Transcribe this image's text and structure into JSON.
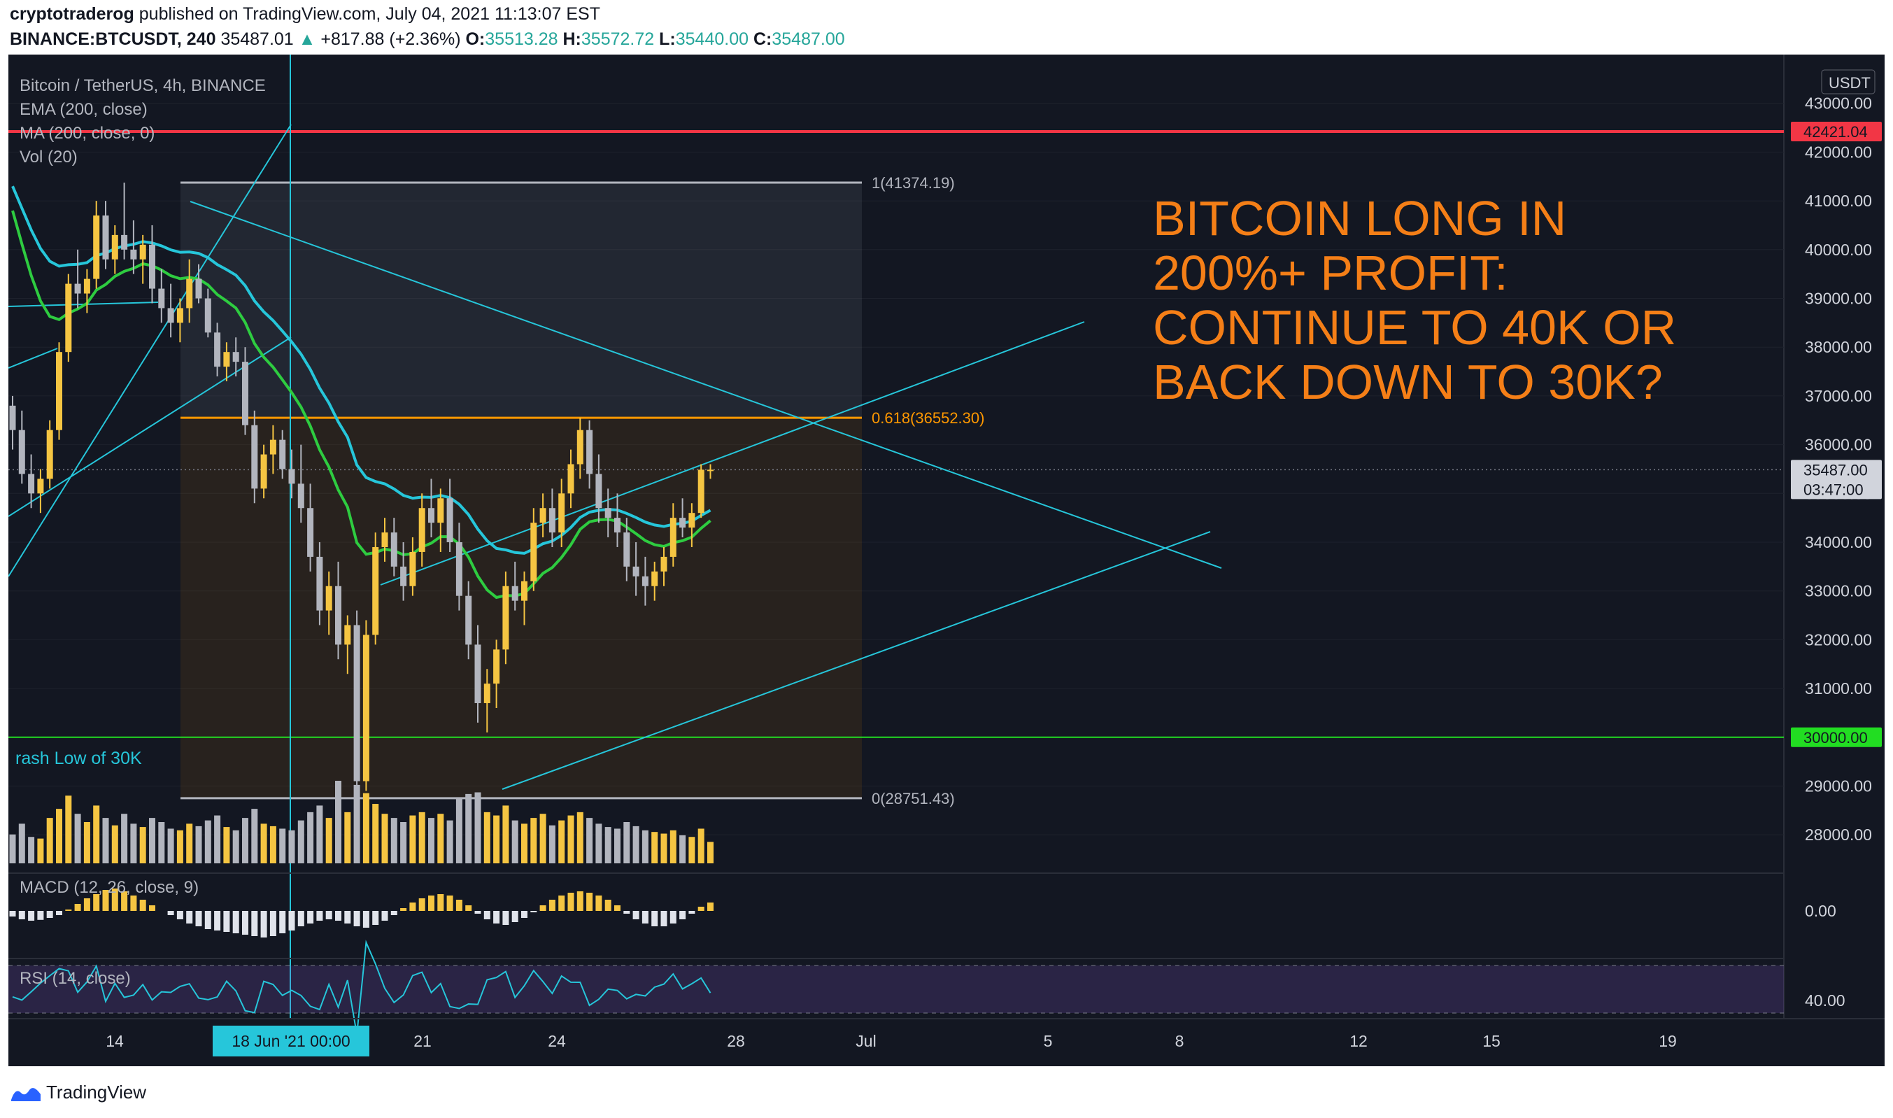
{
  "header": {
    "author": "cryptotraderog",
    "published_text": " published on TradingView.com, July 04, 2021 11:13:07 EST",
    "symbol": "BINANCE:BTCUSDT, 240",
    "last": "35487.01",
    "arrow": "▲",
    "change": "+817.88 (+2.36%)",
    "o_label": "O:",
    "o": "35513.28",
    "h_label": "H:",
    "h": "35572.72",
    "l_label": "L:",
    "l": "35440.00",
    "c_label": "C:",
    "c": "35487.00"
  },
  "legend": {
    "title": "Bitcoin / TetherUS, 4h, BINANCE",
    "ema": "EMA (200, close)",
    "ma": "MA (200, close, 0)",
    "vol": "Vol (20)",
    "macd": "MACD (12, 26, close, 9)",
    "rsi": "RSI (14, close)"
  },
  "annotation": {
    "lines": [
      "BITCOIN LONG IN",
      "200%+ PROFIT:",
      "CONTINUE TO 40K OR",
      "BACK DOWN TO 30K?"
    ],
    "color": "#f57f17"
  },
  "crash_label": "rash Low of 30K",
  "footer": {
    "brand": "TradingView"
  },
  "colors": {
    "bg": "#131722",
    "up": "#f5c542",
    "down": "#b2b5be",
    "ema": "#26c6da",
    "ma": "#2ecc40",
    "red_line": "#f23645",
    "green_line": "#22dd22",
    "trend": "#26c6da",
    "fib": "#ff9800"
  },
  "chart_data": {
    "type": "candlestick",
    "price_axis": {
      "unit": "USDT",
      "ticks": [
        "43000.00",
        "42000.00",
        "41000.00",
        "40000.00",
        "39000.00",
        "38000.00",
        "37000.00",
        "36000.00",
        "35000.00",
        "34000.00",
        "33000.00",
        "32000.00",
        "31000.00",
        "30000.00",
        "29000.00",
        "28000.00"
      ],
      "min": 27300,
      "max": 44000
    },
    "time_axis": {
      "ticks": [
        "14",
        "21",
        "24",
        "28",
        "Jul",
        "5",
        "8",
        "12",
        "15",
        "19"
      ],
      "crosshair_label": "18 Jun '21   00:00"
    },
    "price_labels": [
      {
        "value": "42421.04",
        "price": 42421.04,
        "color": "#f23645"
      },
      {
        "value": "30000.00",
        "price": 30000,
        "color": "#22dd22"
      },
      {
        "value": "35487.00",
        "price": 35487,
        "color": "#d1d4dc",
        "countdown": "03:47:00"
      }
    ],
    "fib_levels": [
      {
        "label": "1(41374.19)",
        "price": 41374.19
      },
      {
        "label": "0.618(36552.30)",
        "price": 36552.3
      },
      {
        "label": "0(28751.43)",
        "price": 28751.43
      }
    ],
    "macd_tick": "0.00",
    "rsi_tick": "40.00",
    "candles": [
      [
        36800,
        37000,
        35900,
        36300
      ],
      [
        36300,
        36700,
        35200,
        35400
      ],
      [
        35400,
        35800,
        34700,
        35000
      ],
      [
        35000,
        35500,
        34600,
        35300
      ],
      [
        35300,
        36500,
        35100,
        36300
      ],
      [
        36300,
        38100,
        36100,
        37900
      ],
      [
        37900,
        39500,
        37700,
        39300
      ],
      [
        39300,
        40000,
        38800,
        39100
      ],
      [
        39100,
        39600,
        38700,
        39400
      ],
      [
        39400,
        41000,
        39200,
        40700
      ],
      [
        40700,
        41000,
        39600,
        39800
      ],
      [
        39800,
        40500,
        39500,
        40300
      ],
      [
        40300,
        41374,
        39800,
        40000
      ],
      [
        40000,
        40600,
        39500,
        39800
      ],
      [
        39800,
        40300,
        39300,
        40100
      ],
      [
        40100,
        40500,
        38900,
        39200
      ],
      [
        39200,
        39600,
        38500,
        38800
      ],
      [
        38800,
        39300,
        38200,
        38500
      ],
      [
        38500,
        39000,
        38100,
        38800
      ],
      [
        38800,
        39800,
        38500,
        39400
      ],
      [
        39400,
        39700,
        38900,
        39000
      ],
      [
        39000,
        39200,
        38200,
        38300
      ],
      [
        38300,
        38500,
        37400,
        37600
      ],
      [
        37600,
        38100,
        37300,
        37900
      ],
      [
        37900,
        38200,
        37400,
        37700
      ],
      [
        37700,
        38000,
        36200,
        36400
      ],
      [
        36400,
        36700,
        34800,
        35100
      ],
      [
        35100,
        36000,
        34900,
        35800
      ],
      [
        35800,
        36400,
        35400,
        36100
      ],
      [
        36100,
        36300,
        35300,
        35500
      ],
      [
        35500,
        35900,
        34900,
        35200
      ],
      [
        35200,
        36000,
        34400,
        34700
      ],
      [
        34700,
        35200,
        33400,
        33700
      ],
      [
        33700,
        34000,
        32300,
        32600
      ],
      [
        32600,
        33400,
        32100,
        33100
      ],
      [
        33100,
        33600,
        31600,
        31900
      ],
      [
        31900,
        32500,
        31300,
        32300
      ],
      [
        32300,
        32600,
        28800,
        29100
      ],
      [
        29100,
        32400,
        28900,
        32100
      ],
      [
        32100,
        34200,
        31900,
        33900
      ],
      [
        33900,
        34500,
        33600,
        34200
      ],
      [
        34200,
        34500,
        33300,
        33500
      ],
      [
        33500,
        34000,
        32800,
        33100
      ],
      [
        33100,
        34100,
        32900,
        33800
      ],
      [
        33800,
        35000,
        33500,
        34700
      ],
      [
        34700,
        35300,
        34100,
        34400
      ],
      [
        34400,
        35100,
        33800,
        34900
      ],
      [
        34900,
        35300,
        33800,
        34000
      ],
      [
        34000,
        34400,
        32600,
        32900
      ],
      [
        32900,
        33200,
        31600,
        31900
      ],
      [
        31900,
        32300,
        30300,
        30700
      ],
      [
        30700,
        31400,
        30100,
        31100
      ],
      [
        31100,
        32000,
        30600,
        31800
      ],
      [
        31800,
        33400,
        31500,
        33100
      ],
      [
        33100,
        33600,
        32600,
        32800
      ],
      [
        32800,
        33400,
        32300,
        33200
      ],
      [
        33200,
        34700,
        33000,
        34400
      ],
      [
        34400,
        35000,
        34100,
        34700
      ],
      [
        34700,
        35100,
        33900,
        34200
      ],
      [
        34200,
        35300,
        33900,
        35000
      ],
      [
        35000,
        35900,
        34700,
        35600
      ],
      [
        35600,
        36552,
        35300,
        36300
      ],
      [
        36300,
        36500,
        35100,
        35400
      ],
      [
        35400,
        35800,
        34400,
        34700
      ],
      [
        34700,
        35100,
        34100,
        34500
      ],
      [
        34500,
        35000,
        33900,
        34200
      ],
      [
        34200,
        34500,
        33200,
        33500
      ],
      [
        33500,
        34000,
        32900,
        33300
      ],
      [
        33300,
        33700,
        32700,
        33100
      ],
      [
        33100,
        33600,
        32800,
        33400
      ],
      [
        33400,
        33900,
        33100,
        33700
      ],
      [
        33700,
        34800,
        33500,
        34500
      ],
      [
        34500,
        34900,
        34100,
        34300
      ],
      [
        34300,
        34800,
        33900,
        34600
      ],
      [
        34600,
        35600,
        34500,
        35487
      ],
      [
        35487,
        35600,
        35300,
        35487
      ]
    ],
    "volumes": [
      0.35,
      0.48,
      0.32,
      0.3,
      0.55,
      0.66,
      0.82,
      0.6,
      0.5,
      0.7,
      0.55,
      0.46,
      0.6,
      0.48,
      0.44,
      0.55,
      0.5,
      0.42,
      0.4,
      0.48,
      0.45,
      0.52,
      0.58,
      0.44,
      0.4,
      0.55,
      0.66,
      0.48,
      0.45,
      0.42,
      0.4,
      0.52,
      0.62,
      0.7,
      0.55,
      1.0,
      0.62,
      0.95,
      0.85,
      0.72,
      0.6,
      0.55,
      0.5,
      0.58,
      0.62,
      0.55,
      0.6,
      0.52,
      0.78,
      0.84,
      0.86,
      0.62,
      0.58,
      0.7,
      0.52,
      0.48,
      0.55,
      0.6,
      0.46,
      0.52,
      0.58,
      0.62,
      0.55,
      0.48,
      0.44,
      0.42,
      0.5,
      0.45,
      0.4,
      0.38,
      0.36,
      0.4,
      0.34,
      0.32,
      0.42,
      0.26
    ],
    "macd_hist": [
      -0.2,
      -0.3,
      -0.35,
      -0.32,
      -0.25,
      -0.15,
      0.05,
      0.25,
      0.45,
      0.6,
      0.75,
      0.8,
      0.7,
      0.55,
      0.4,
      0.2,
      0.0,
      -0.15,
      -0.3,
      -0.45,
      -0.55,
      -0.65,
      -0.7,
      -0.75,
      -0.8,
      -0.85,
      -0.9,
      -0.95,
      -0.9,
      -0.8,
      -0.7,
      -0.55,
      -0.45,
      -0.35,
      -0.3,
      -0.35,
      -0.45,
      -0.55,
      -0.6,
      -0.5,
      -0.35,
      -0.15,
      0.1,
      0.3,
      0.45,
      0.55,
      0.6,
      0.55,
      0.4,
      0.2,
      -0.1,
      -0.3,
      -0.45,
      -0.5,
      -0.4,
      -0.25,
      -0.05,
      0.2,
      0.4,
      0.55,
      0.65,
      0.7,
      0.65,
      0.55,
      0.4,
      0.2,
      -0.1,
      -0.3,
      -0.45,
      -0.55,
      -0.55,
      -0.45,
      -0.3,
      -0.1,
      0.15,
      0.3
    ]
  }
}
